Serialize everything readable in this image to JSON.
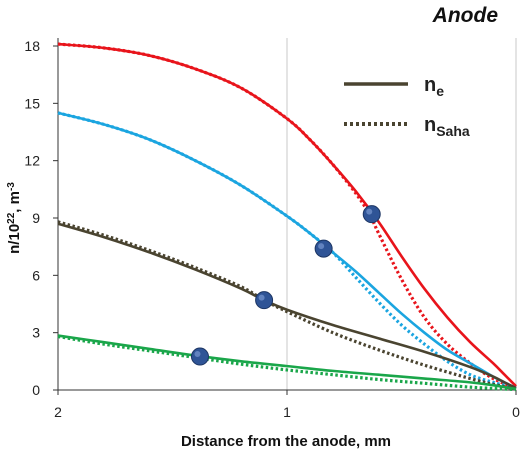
{
  "chart_data": {
    "type": "line",
    "title": "Anode",
    "xlabel": "Distance from the anode, mm",
    "ylabel_parts": [
      "n/10",
      "22",
      ", m",
      "-3"
    ],
    "xlim": [
      2,
      0
    ],
    "x_reversed": true,
    "ylim": [
      0,
      18
    ],
    "x_ticks": [
      2,
      1,
      0
    ],
    "y_ticks": [
      0,
      3,
      6,
      9,
      12,
      15,
      18
    ],
    "grid": "vertical",
    "legend": [
      {
        "base": "n",
        "sub": "e",
        "style": "solid"
      },
      {
        "base": "n",
        "sub": "Saha",
        "style": "dotted"
      }
    ],
    "legend_position": "top-right",
    "series": [
      {
        "color": "#e8141b",
        "ne": {
          "x": [
            2.0,
            1.8,
            1.6,
            1.4,
            1.2,
            1.0,
            0.9,
            0.8,
            0.7,
            0.6,
            0.5,
            0.4,
            0.3,
            0.2,
            0.1,
            0.05,
            0.0
          ],
          "y": [
            18.1,
            17.9,
            17.5,
            16.8,
            15.8,
            14.2,
            13.1,
            11.8,
            10.4,
            8.8,
            7.0,
            5.3,
            3.8,
            2.5,
            1.4,
            0.8,
            0.2
          ]
        },
        "nsaha": {
          "x": [
            2.0,
            1.8,
            1.6,
            1.4,
            1.2,
            1.0,
            0.9,
            0.8,
            0.7,
            0.64,
            0.6,
            0.5,
            0.4,
            0.3,
            0.2,
            0.1,
            0.0
          ],
          "y": [
            18.1,
            17.9,
            17.5,
            16.8,
            15.8,
            14.2,
            13.1,
            11.8,
            10.3,
            9.2,
            8.2,
            5.8,
            3.8,
            2.4,
            1.4,
            0.6,
            0.1
          ]
        },
        "marker": {
          "x": 0.63,
          "y": 9.2
        }
      },
      {
        "color": "#1ba5e0",
        "ne": {
          "x": [
            2.0,
            1.8,
            1.6,
            1.4,
            1.2,
            1.0,
            0.9,
            0.8,
            0.7,
            0.6,
            0.5,
            0.4,
            0.3,
            0.2,
            0.1,
            0.05,
            0.0
          ],
          "y": [
            14.5,
            13.9,
            13.1,
            12.0,
            10.7,
            9.1,
            8.2,
            7.2,
            6.2,
            5.1,
            4.0,
            3.0,
            2.1,
            1.4,
            0.7,
            0.4,
            0.1
          ]
        },
        "nsaha": {
          "x": [
            2.0,
            1.8,
            1.6,
            1.4,
            1.2,
            1.0,
            0.9,
            0.8,
            0.7,
            0.6,
            0.5,
            0.4,
            0.3,
            0.2,
            0.1,
            0.0
          ],
          "y": [
            14.5,
            13.9,
            13.1,
            12.0,
            10.7,
            9.1,
            8.2,
            7.2,
            5.9,
            4.6,
            3.4,
            2.4,
            1.5,
            0.8,
            0.4,
            0.1
          ]
        },
        "marker": {
          "x": 0.84,
          "y": 7.4
        }
      },
      {
        "color": "#4a4430",
        "ne": {
          "x": [
            2.0,
            1.8,
            1.6,
            1.4,
            1.2,
            1.1,
            1.0,
            0.8,
            0.6,
            0.4,
            0.2,
            0.1,
            0.05,
            0.0
          ],
          "y": [
            8.7,
            8.0,
            7.2,
            6.3,
            5.3,
            4.7,
            4.2,
            3.4,
            2.7,
            2.0,
            1.2,
            0.7,
            0.4,
            0.1
          ]
        },
        "nsaha": {
          "x": [
            2.0,
            1.8,
            1.6,
            1.4,
            1.2,
            1.1,
            1.0,
            0.8,
            0.6,
            0.4,
            0.2,
            0.1,
            0.0
          ],
          "y": [
            8.8,
            8.1,
            7.3,
            6.4,
            5.4,
            4.7,
            4.1,
            3.0,
            2.1,
            1.3,
            0.6,
            0.3,
            0.05
          ]
        },
        "marker": {
          "x": 1.1,
          "y": 4.7
        }
      },
      {
        "color": "#1aa64a",
        "ne": {
          "x": [
            2.0,
            1.8,
            1.6,
            1.4,
            1.2,
            1.0,
            0.8,
            0.6,
            0.4,
            0.2,
            0.1,
            0.0
          ],
          "y": [
            2.85,
            2.5,
            2.15,
            1.8,
            1.5,
            1.25,
            1.0,
            0.8,
            0.6,
            0.4,
            0.25,
            0.05
          ]
        },
        "nsaha": {
          "x": [
            2.0,
            1.8,
            1.6,
            1.4,
            1.2,
            1.0,
            0.8,
            0.6,
            0.4,
            0.2,
            0.0
          ],
          "y": [
            2.8,
            2.4,
            2.05,
            1.7,
            1.35,
            1.05,
            0.8,
            0.55,
            0.35,
            0.15,
            0.02
          ]
        },
        "marker": {
          "x": 1.38,
          "y": 1.75
        }
      }
    ]
  }
}
